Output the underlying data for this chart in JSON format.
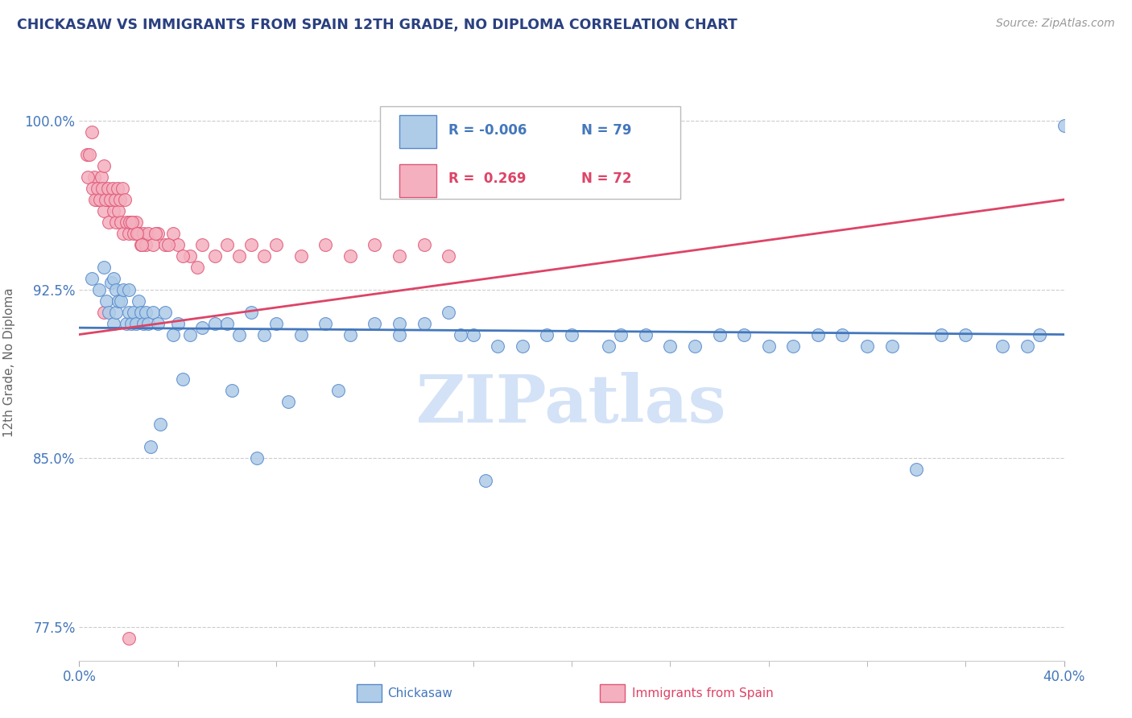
{
  "title": "CHICKASAW VS IMMIGRANTS FROM SPAIN 12TH GRADE, NO DIPLOMA CORRELATION CHART",
  "source_text": "Source: ZipAtlas.com",
  "xmin": 0.0,
  "xmax": 40.0,
  "ymin": 76.0,
  "ymax": 102.5,
  "yticks": [
    77.5,
    85.0,
    92.5,
    100.0
  ],
  "xtick_left": "0.0%",
  "xtick_right": "40.0%",
  "legend_r1": "R = -0.006",
  "legend_n1": "N = 79",
  "legend_r2": "R =  0.269",
  "legend_n2": "N = 72",
  "label1": "Chickasaw",
  "label2": "Immigrants from Spain",
  "color1": "#aecce8",
  "color2": "#f4b0bf",
  "edge_color1": "#5588cc",
  "edge_color2": "#e05575",
  "line_color1": "#4477bb",
  "line_color2": "#dd4466",
  "watermark": "ZIPatlas",
  "watermark_color": "#ccddf5",
  "title_color": "#2a4080",
  "source_color": "#999999",
  "axis_label_color": "#4477bb",
  "ylabel": "12th Grade, No Diploma",
  "trend1_x0": 0.0,
  "trend1_x1": 40.0,
  "trend1_y0": 90.8,
  "trend1_y1": 90.5,
  "trend2_x0": 0.0,
  "trend2_x1": 40.0,
  "trend2_y0": 90.5,
  "trend2_y1": 96.5,
  "chickasaw_x": [
    0.5,
    0.8,
    1.0,
    1.1,
    1.2,
    1.3,
    1.4,
    1.4,
    1.5,
    1.5,
    1.6,
    1.7,
    1.8,
    1.9,
    2.0,
    2.0,
    2.1,
    2.2,
    2.3,
    2.4,
    2.5,
    2.6,
    2.7,
    2.8,
    3.0,
    3.2,
    3.5,
    3.8,
    4.0,
    4.5,
    5.0,
    5.5,
    6.0,
    6.5,
    7.0,
    7.5,
    8.0,
    9.0,
    10.0,
    11.0,
    12.0,
    13.0,
    14.0,
    15.0,
    16.0,
    18.0,
    20.0,
    22.0,
    24.0,
    26.0,
    28.0,
    30.0,
    32.0,
    35.0,
    38.5,
    13.0,
    15.5,
    17.0,
    19.0,
    21.5,
    23.0,
    25.0,
    27.0,
    29.0,
    31.0,
    33.0,
    36.0,
    37.5,
    39.0,
    40.0,
    4.2,
    6.2,
    8.5,
    10.5,
    34.0,
    3.3,
    2.9,
    7.2,
    16.5
  ],
  "chickasaw_y": [
    93.0,
    92.5,
    93.5,
    92.0,
    91.5,
    92.8,
    91.0,
    93.0,
    92.5,
    91.5,
    92.0,
    92.0,
    92.5,
    91.0,
    92.5,
    91.5,
    91.0,
    91.5,
    91.0,
    92.0,
    91.5,
    91.0,
    91.5,
    91.0,
    91.5,
    91.0,
    91.5,
    90.5,
    91.0,
    90.5,
    90.8,
    91.0,
    91.0,
    90.5,
    91.5,
    90.5,
    91.0,
    90.5,
    91.0,
    90.5,
    91.0,
    90.5,
    91.0,
    91.5,
    90.5,
    90.0,
    90.5,
    90.5,
    90.0,
    90.5,
    90.0,
    90.5,
    90.0,
    90.5,
    90.0,
    91.0,
    90.5,
    90.0,
    90.5,
    90.0,
    90.5,
    90.0,
    90.5,
    90.0,
    90.5,
    90.0,
    90.5,
    90.0,
    90.5,
    99.8,
    88.5,
    88.0,
    87.5,
    88.0,
    84.5,
    86.5,
    85.5,
    85.0,
    84.0
  ],
  "spain_x": [
    0.3,
    0.4,
    0.5,
    0.6,
    0.7,
    0.8,
    0.9,
    1.0,
    1.0,
    1.1,
    1.2,
    1.3,
    1.4,
    1.5,
    1.6,
    1.7,
    1.8,
    1.9,
    2.0,
    2.1,
    2.2,
    2.3,
    2.4,
    2.5,
    2.6,
    2.7,
    2.8,
    3.0,
    3.2,
    3.5,
    3.8,
    4.0,
    4.5,
    5.0,
    5.5,
    6.0,
    6.5,
    7.0,
    7.5,
    8.0,
    9.0,
    10.0,
    11.0,
    12.0,
    13.0,
    14.0,
    15.0,
    0.35,
    0.55,
    0.65,
    0.75,
    0.85,
    0.95,
    1.05,
    1.15,
    1.25,
    1.35,
    1.45,
    1.55,
    1.65,
    1.75,
    1.85,
    2.05,
    2.15,
    2.35,
    2.55,
    3.1,
    3.6,
    4.2,
    4.8,
    1.0,
    2.0
  ],
  "spain_y": [
    98.5,
    98.5,
    99.5,
    97.5,
    96.5,
    97.0,
    97.5,
    96.0,
    98.0,
    96.5,
    95.5,
    96.5,
    96.0,
    95.5,
    96.0,
    95.5,
    95.0,
    95.5,
    95.0,
    95.5,
    95.0,
    95.5,
    95.0,
    94.5,
    95.0,
    94.5,
    95.0,
    94.5,
    95.0,
    94.5,
    95.0,
    94.5,
    94.0,
    94.5,
    94.0,
    94.5,
    94.0,
    94.5,
    94.0,
    94.5,
    94.0,
    94.5,
    94.0,
    94.5,
    94.0,
    94.5,
    94.0,
    97.5,
    97.0,
    96.5,
    97.0,
    96.5,
    97.0,
    96.5,
    97.0,
    96.5,
    97.0,
    96.5,
    97.0,
    96.5,
    97.0,
    96.5,
    95.5,
    95.5,
    95.0,
    94.5,
    95.0,
    94.5,
    94.0,
    93.5,
    91.5,
    77.0
  ]
}
